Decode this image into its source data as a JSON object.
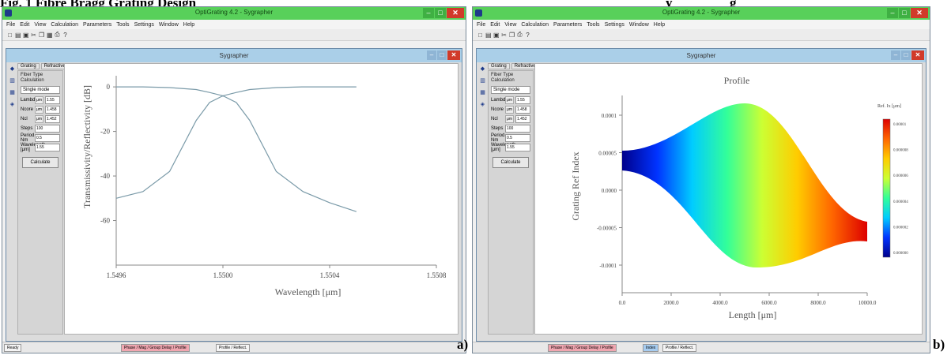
{
  "figure": {
    "caption_left": "Fig. 1 Fibre Bragg Grating Design",
    "caption_right": "y",
    "caption_right2": "g",
    "label_a": "a)",
    "label_b": "b)"
  },
  "left_window": {
    "app_title": "OptiGrating 4.2 - Sygrapher",
    "menu": [
      "File",
      "Edit",
      "View",
      "Calculation",
      "Parameters",
      "Tools",
      "Settings",
      "Window",
      "Help"
    ],
    "child_title": "Sygrapher",
    "panel_tabs": [
      "Grating",
      "Refractive"
    ],
    "panel_header": "Fiber Type Calculation",
    "panel_select": "Single mode",
    "params": [
      {
        "label": "Lambda",
        "unit": "μm",
        "value": "1.55"
      },
      {
        "label": "Ncore",
        "unit": "μm",
        "value": "1.458"
      },
      {
        "label": "Ncl",
        "unit": "μm",
        "value": "1.452"
      },
      {
        "label": "Steps",
        "unit": "",
        "value": "100"
      },
      {
        "label": "Period, Nm",
        "unit": "",
        "value": "0.5"
      },
      {
        "label": "Wavelength [μm]",
        "unit": "",
        "value": "1.55"
      }
    ],
    "calc_button": "Calculate",
    "bottom_tabs": [
      "Phase / Mag / Group Delay / Profile",
      "Profile / Reflect."
    ],
    "status": "Ready"
  },
  "right_window": {
    "app_title": "OptiGrating 4.2 - Sygrapher",
    "menu": [
      "File",
      "Edit",
      "View",
      "Calculation",
      "Parameters",
      "Tools",
      "Settings",
      "Window",
      "Help"
    ],
    "child_title": "Sygrapher",
    "panel_tabs": [
      "Grating",
      "Refractive"
    ],
    "panel_header": "Fiber Type Calculation",
    "panel_select": "Single mode",
    "params": [
      {
        "label": "Lambda",
        "unit": "μm",
        "value": "1.55"
      },
      {
        "label": "Ncore",
        "unit": "μm",
        "value": "1.458"
      },
      {
        "label": "Ncl",
        "unit": "μm",
        "value": "1.452"
      },
      {
        "label": "Steps",
        "unit": "",
        "value": "100"
      },
      {
        "label": "Period, Nm",
        "unit": "",
        "value": "0.5"
      },
      {
        "label": "Wavelength [μm]",
        "unit": "",
        "value": "1.55"
      }
    ],
    "calc_button": "Calculate",
    "bottom_tabs": [
      "Phase / Mag / Group Delay / Profile",
      "Index",
      "Profile / Reflect."
    ]
  },
  "chart_data": [
    {
      "type": "line",
      "title": "",
      "xlabel": "Wavelength [μm]",
      "ylabel": "Transmissivity/Reflectivity [dB]",
      "x_ticks": [
        "1.5496",
        "1.5500",
        "1.5504",
        "1.5508"
      ],
      "y_ticks": [
        "0",
        "-20",
        "-40",
        "-60"
      ],
      "xlim": [
        1.5496,
        1.5508
      ],
      "ylim": [
        -80,
        5
      ],
      "series": [
        {
          "x": [
            1.5496,
            1.5497,
            1.5498,
            1.5499,
            1.54995,
            1.55,
            1.55005,
            1.5501,
            1.5502,
            1.5503,
            1.5504,
            1.5505
          ],
          "values": [
            0,
            0,
            -0.3,
            -1.2,
            -2.5,
            -4,
            -2.5,
            -1.2,
            -0.3,
            0,
            0,
            0
          ]
        },
        {
          "x": [
            1.5496,
            1.5497,
            1.5498,
            1.5499,
            1.54995,
            1.55,
            1.55005,
            1.5501,
            1.5502,
            1.5503,
            1.5504,
            1.5505
          ],
          "values": [
            -50,
            -47,
            -38,
            -15,
            -7,
            -4,
            -7,
            -15,
            -38,
            -47,
            -52,
            -56
          ]
        }
      ]
    },
    {
      "type": "heatmap",
      "title": "Profile",
      "xlabel": "Length [μm]",
      "ylabel": "Grating Ref Index",
      "x_ticks": [
        "0.0",
        "2000.0",
        "4000.0",
        "6000.0",
        "8000.0",
        "10000.0"
      ],
      "y_ticks": [
        "0.0001",
        "0.00005",
        "0.0000",
        "-0.00005",
        "-0.0001"
      ],
      "colorbar_label": "Ref. Ix [μm]",
      "colorbar_ticks": [
        "0.00001",
        "0.000008",
        "0.000006",
        "0.000004",
        "0.000002",
        "0.000000"
      ],
      "colormap": [
        "#00008b",
        "#0033ff",
        "#00ccff",
        "#33ff99",
        "#ccff33",
        "#ffcc00",
        "#ff6600",
        "#dd0000"
      ]
    }
  ]
}
